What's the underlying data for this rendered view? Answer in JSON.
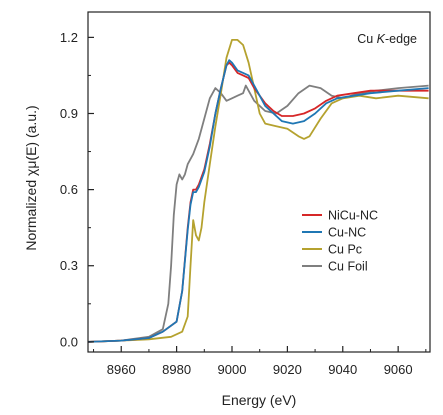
{
  "chart_data": {
    "type": "line",
    "title": "",
    "annotation": {
      "text_prefix": "Cu ",
      "text_italic": "K",
      "text_suffix": "-edge",
      "placement": "top-right"
    },
    "xlabel": "Energy (eV)",
    "ylabel": "Normalized χμ(E) (a.u.)",
    "xlim": [
      8948,
      8071.5
    ],
    "ylim": [
      -0.04,
      1.3
    ],
    "xticks": [
      8960,
      8980,
      9000,
      9020,
      9040,
      9060
    ],
    "xtick_labels": [
      "8960",
      "8980",
      "9000",
      "9020",
      "9040",
      "9060"
    ],
    "yticks": [
      0.0,
      0.3,
      0.6,
      0.9,
      1.2
    ],
    "ytick_labels": [
      "0.0",
      "0.3",
      "0.6",
      "0.9",
      "1.2"
    ],
    "grid": false,
    "legend_placement": "center-right",
    "series": [
      {
        "name": "NiCu-NC",
        "color": "#d62728",
        "points": [
          [
            8948,
            0.0
          ],
          [
            8960,
            0.005
          ],
          [
            8970,
            0.015
          ],
          [
            8975,
            0.04
          ],
          [
            8980,
            0.08
          ],
          [
            8982,
            0.2
          ],
          [
            8984,
            0.45
          ],
          [
            8985,
            0.55
          ],
          [
            8986,
            0.6
          ],
          [
            8987,
            0.6
          ],
          [
            8988,
            0.62
          ],
          [
            8990,
            0.68
          ],
          [
            8992,
            0.78
          ],
          [
            8994,
            0.9
          ],
          [
            8996,
            1.0
          ],
          [
            8998,
            1.09
          ],
          [
            8999,
            1.1
          ],
          [
            9000,
            1.09
          ],
          [
            9002,
            1.06
          ],
          [
            9004,
            1.05
          ],
          [
            9006,
            1.04
          ],
          [
            9008,
            1.0
          ],
          [
            9010,
            0.97
          ],
          [
            9012,
            0.94
          ],
          [
            9015,
            0.91
          ],
          [
            9018,
            0.89
          ],
          [
            9022,
            0.89
          ],
          [
            9026,
            0.9
          ],
          [
            9030,
            0.92
          ],
          [
            9034,
            0.95
          ],
          [
            9038,
            0.97
          ],
          [
            9044,
            0.98
          ],
          [
            9050,
            0.99
          ],
          [
            9060,
            0.99
          ],
          [
            9071,
            0.99
          ]
        ]
      },
      {
        "name": "Cu-NC",
        "color": "#1f77b4",
        "points": [
          [
            8948,
            0.0
          ],
          [
            8960,
            0.005
          ],
          [
            8970,
            0.015
          ],
          [
            8975,
            0.04
          ],
          [
            8980,
            0.08
          ],
          [
            8982,
            0.2
          ],
          [
            8984,
            0.44
          ],
          [
            8985,
            0.54
          ],
          [
            8986,
            0.59
          ],
          [
            8987,
            0.59
          ],
          [
            8988,
            0.61
          ],
          [
            8990,
            0.67
          ],
          [
            8992,
            0.77
          ],
          [
            8994,
            0.9
          ],
          [
            8996,
            1.0
          ],
          [
            8998,
            1.09
          ],
          [
            8999,
            1.11
          ],
          [
            9000,
            1.1
          ],
          [
            9002,
            1.07
          ],
          [
            9004,
            1.06
          ],
          [
            9006,
            1.05
          ],
          [
            9008,
            1.01
          ],
          [
            9010,
            0.97
          ],
          [
            9012,
            0.93
          ],
          [
            9015,
            0.9
          ],
          [
            9018,
            0.87
          ],
          [
            9022,
            0.86
          ],
          [
            9026,
            0.87
          ],
          [
            9030,
            0.9
          ],
          [
            9034,
            0.94
          ],
          [
            9038,
            0.96
          ],
          [
            9044,
            0.97
          ],
          [
            9050,
            0.98
          ],
          [
            9060,
            0.99
          ],
          [
            9071,
            1.0
          ]
        ]
      },
      {
        "name": "Cu Pc",
        "color": "#b5a22f",
        "points": [
          [
            8948,
            0.0
          ],
          [
            8960,
            0.005
          ],
          [
            8970,
            0.01
          ],
          [
            8978,
            0.02
          ],
          [
            8982,
            0.04
          ],
          [
            8984,
            0.1
          ],
          [
            8985,
            0.3
          ],
          [
            8986,
            0.48
          ],
          [
            8987,
            0.42
          ],
          [
            8988,
            0.4
          ],
          [
            8989,
            0.45
          ],
          [
            8990,
            0.55
          ],
          [
            8992,
            0.7
          ],
          [
            8994,
            0.85
          ],
          [
            8996,
            0.98
          ],
          [
            8998,
            1.12
          ],
          [
            9000,
            1.19
          ],
          [
            9002,
            1.19
          ],
          [
            9004,
            1.17
          ],
          [
            9006,
            1.1
          ],
          [
            9008,
            1.0
          ],
          [
            9010,
            0.9
          ],
          [
            9012,
            0.86
          ],
          [
            9016,
            0.85
          ],
          [
            9020,
            0.84
          ],
          [
            9024,
            0.81
          ],
          [
            9026,
            0.8
          ],
          [
            9028,
            0.81
          ],
          [
            9032,
            0.88
          ],
          [
            9036,
            0.94
          ],
          [
            9040,
            0.96
          ],
          [
            9046,
            0.97
          ],
          [
            9052,
            0.96
          ],
          [
            9060,
            0.97
          ],
          [
            9071,
            0.96
          ]
        ]
      },
      {
        "name": "Cu Foil",
        "color": "#7f7f7f",
        "points": [
          [
            8948,
            0.0
          ],
          [
            8960,
            0.005
          ],
          [
            8970,
            0.02
          ],
          [
            8975,
            0.05
          ],
          [
            8977,
            0.15
          ],
          [
            8978,
            0.3
          ],
          [
            8979,
            0.5
          ],
          [
            8980,
            0.62
          ],
          [
            8981,
            0.66
          ],
          [
            8982,
            0.64
          ],
          [
            8983,
            0.66
          ],
          [
            8984,
            0.7
          ],
          [
            8986,
            0.74
          ],
          [
            8988,
            0.8
          ],
          [
            8990,
            0.88
          ],
          [
            8992,
            0.96
          ],
          [
            8994,
            1.0
          ],
          [
            8996,
            0.98
          ],
          [
            8998,
            0.95
          ],
          [
            9000,
            0.96
          ],
          [
            9002,
            0.97
          ],
          [
            9004,
            0.98
          ],
          [
            9005,
            1.01
          ],
          [
            9006,
            0.99
          ],
          [
            9008,
            0.95
          ],
          [
            9012,
            0.91
          ],
          [
            9016,
            0.9
          ],
          [
            9020,
            0.93
          ],
          [
            9024,
            0.98
          ],
          [
            9028,
            1.01
          ],
          [
            9032,
            1.0
          ],
          [
            9036,
            0.97
          ],
          [
            9040,
            0.96
          ],
          [
            9046,
            0.98
          ],
          [
            9052,
            0.99
          ],
          [
            9060,
            1.0
          ],
          [
            9071,
            1.01
          ]
        ]
      }
    ]
  }
}
